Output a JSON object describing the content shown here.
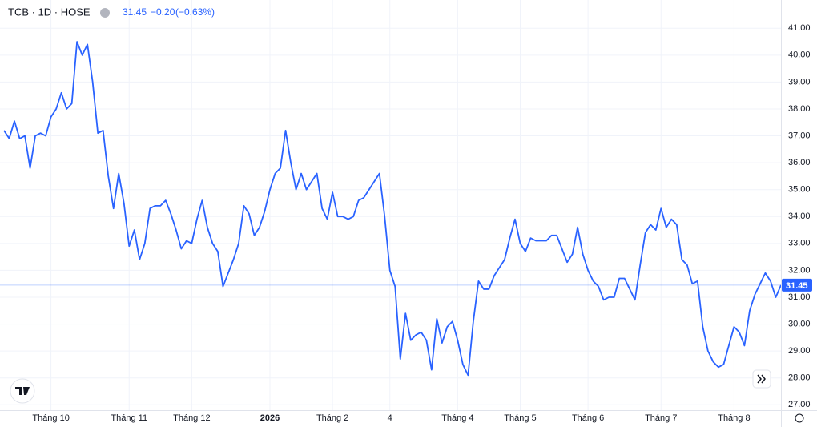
{
  "chart_data": {
    "type": "line",
    "title": "TCB · 1D · HOSE",
    "header": {
      "price": "31.45",
      "change": "−0.20",
      "change_pct": "(−0.63%)"
    },
    "color": "#2962ff",
    "grid": true,
    "ylim": [
      26.8,
      42.05
    ],
    "yticks": [
      {
        "value": 27,
        "label": "27.00"
      },
      {
        "value": 28,
        "label": "28.00"
      },
      {
        "value": 29,
        "label": "29.00"
      },
      {
        "value": 30,
        "label": "30.00"
      },
      {
        "value": 31,
        "label": "31.00"
      },
      {
        "value": 32,
        "label": "32.00"
      },
      {
        "value": 33,
        "label": "33.00"
      },
      {
        "value": 34,
        "label": "34.00"
      },
      {
        "value": 35,
        "label": "35.00"
      },
      {
        "value": 36,
        "label": "36.00"
      },
      {
        "value": 37,
        "label": "37.00"
      },
      {
        "value": 38,
        "label": "38.00"
      },
      {
        "value": 39,
        "label": "39.00"
      },
      {
        "value": 40,
        "label": "40.00"
      },
      {
        "value": 41,
        "label": "41.00"
      }
    ],
    "categories": [
      null,
      null,
      null,
      null,
      null,
      null,
      null,
      null,
      null,
      "Tháng 10",
      null,
      null,
      null,
      null,
      null,
      null,
      null,
      null,
      null,
      null,
      null,
      null,
      null,
      null,
      "Tháng 11",
      null,
      null,
      null,
      null,
      null,
      null,
      null,
      null,
      null,
      null,
      null,
      "Tháng 12",
      null,
      null,
      null,
      null,
      null,
      null,
      null,
      null,
      null,
      null,
      null,
      null,
      null,
      null,
      "2026",
      null,
      null,
      null,
      null,
      null,
      null,
      null,
      null,
      null,
      null,
      null,
      "Tháng 2",
      null,
      null,
      null,
      null,
      null,
      null,
      null,
      null,
      null,
      null,
      "4",
      null,
      null,
      null,
      null,
      null,
      null,
      null,
      null,
      null,
      null,
      null,
      null,
      "Tháng 4",
      null,
      null,
      null,
      null,
      null,
      null,
      null,
      null,
      null,
      null,
      null,
      "Tháng 5",
      null,
      null,
      null,
      null,
      null,
      null,
      null,
      null,
      null,
      null,
      null,
      null,
      "Tháng 6",
      null,
      null,
      null,
      null,
      null,
      null,
      null,
      null,
      null,
      null,
      null,
      null,
      null,
      "Tháng 7",
      null,
      null,
      null,
      null,
      null,
      null,
      null,
      null,
      null,
      null,
      null,
      null,
      null,
      "Tháng 8",
      null,
      null,
      null,
      null,
      null,
      null,
      null,
      null,
      null
    ],
    "values": [
      37.2,
      36.9,
      37.55,
      36.9,
      37.0,
      35.8,
      37.0,
      37.1,
      37.0,
      37.7,
      38.0,
      38.6,
      38.0,
      38.2,
      40.5,
      40.0,
      40.4,
      39.0,
      37.1,
      37.2,
      35.5,
      34.3,
      35.6,
      34.5,
      32.9,
      33.5,
      32.4,
      33.0,
      34.3,
      34.4,
      34.4,
      34.6,
      34.1,
      33.5,
      32.8,
      33.1,
      33.0,
      33.9,
      34.6,
      33.6,
      33.0,
      32.7,
      31.4,
      31.9,
      32.4,
      33.0,
      34.4,
      34.1,
      33.3,
      33.6,
      34.2,
      35.0,
      35.6,
      35.8,
      37.2,
      36.0,
      35.0,
      35.6,
      35.0,
      35.3,
      35.6,
      34.3,
      33.9,
      34.9,
      34.0,
      34.0,
      33.9,
      34.0,
      34.6,
      34.7,
      35.0,
      35.3,
      35.6,
      34.0,
      32.0,
      31.4,
      28.7,
      30.4,
      29.4,
      29.6,
      29.7,
      29.4,
      28.3,
      30.2,
      29.3,
      29.9,
      30.1,
      29.4,
      28.5,
      28.1,
      30.1,
      31.6,
      31.3,
      31.3,
      31.8,
      32.1,
      32.4,
      33.2,
      33.9,
      33.0,
      32.7,
      33.2,
      33.1,
      33.1,
      33.1,
      33.3,
      33.3,
      32.8,
      32.3,
      32.6,
      33.6,
      32.6,
      32.0,
      31.6,
      31.4,
      30.9,
      31.0,
      31.0,
      31.7,
      31.7,
      31.3,
      30.9,
      32.2,
      33.4,
      33.7,
      33.5,
      34.3,
      33.6,
      33.9,
      33.7,
      32.4,
      32.2,
      31.5,
      31.6,
      29.9,
      29.0,
      28.6,
      28.4,
      28.5,
      29.2,
      29.9,
      29.7,
      29.2,
      30.5,
      31.1,
      31.5,
      31.9,
      31.6,
      31.0,
      31.45
    ]
  }
}
